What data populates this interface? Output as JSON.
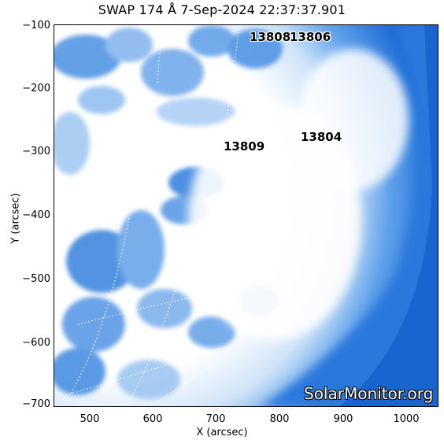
{
  "title": "SWAP 174 Å  7-Sep-2024 22:37:37.901",
  "x_axis_label": "X (arcsec)",
  "y_axis_label": "Y (arcsec)",
  "x_ticks": [
    "500",
    "600",
    "700",
    "800",
    "900",
    "1000"
  ],
  "y_ticks": [
    "−100",
    "−200",
    "−300",
    "−400",
    "−500",
    "−600",
    "−700"
  ],
  "active_regions": [
    "13808",
    "13806",
    "13809",
    "13804"
  ],
  "watermark": "SolarMonitor.org",
  "colors": {
    "background_blue": "#1f6ed6",
    "bright": "#ffffff",
    "mid_blue": "#4a90e2",
    "light_blue": "#b9d6f5"
  }
}
